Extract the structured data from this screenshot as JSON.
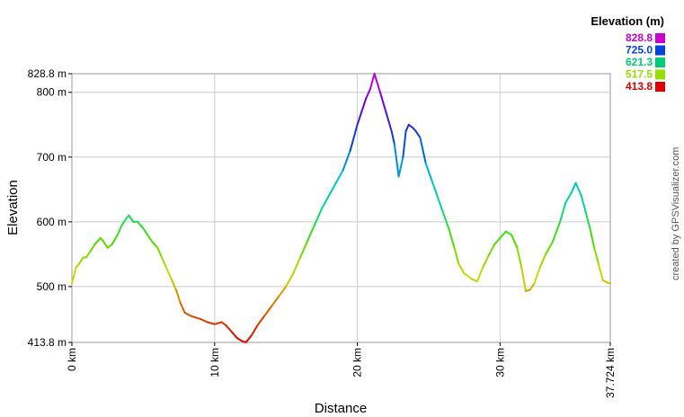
{
  "chart_data": {
    "type": "line",
    "title": "",
    "xlabel": "Distance",
    "ylabel": "Elevation",
    "xlim": [
      0,
      37.724
    ],
    "ylim": [
      413.8,
      828.8
    ],
    "grid": true,
    "x_ticks": [
      {
        "value": 0,
        "label": "0 km"
      },
      {
        "value": 10,
        "label": "10 km"
      },
      {
        "value": 20,
        "label": "20 km"
      },
      {
        "value": 30,
        "label": "30 km"
      },
      {
        "value": 37.724,
        "label": "37.724 km"
      }
    ],
    "y_ticks": [
      {
        "value": 413.8,
        "label": "413.8 m"
      },
      {
        "value": 500,
        "label": "500 m"
      },
      {
        "value": 600,
        "label": "600 m"
      },
      {
        "value": 700,
        "label": "700 m"
      },
      {
        "value": 800,
        "label": "800 m"
      },
      {
        "value": 828.8,
        "label": "828.8 m"
      }
    ],
    "series": [
      {
        "x": [
          0,
          0.3,
          0.5,
          0.8,
          1.0,
          1.3,
          1.6,
          2.0,
          2.2,
          2.5,
          2.8,
          3.2,
          3.5,
          3.8,
          4.0,
          4.3,
          4.6,
          5.0,
          5.3,
          5.6,
          6.0,
          6.3,
          6.6,
          7.0,
          7.3,
          7.6,
          7.9,
          8.3,
          8.7,
          9.0,
          9.5,
          10.0,
          10.5,
          10.8,
          11.2,
          11.6,
          12.0,
          12.2,
          12.6,
          13.0,
          13.5,
          14.0,
          14.5,
          15.0,
          15.5,
          16.0,
          16.5,
          17.0,
          17.5,
          18.0,
          18.5,
          19.0,
          19.5,
          20.0,
          20.3,
          20.6,
          20.9,
          21.2,
          21.6,
          22.0,
          22.4,
          22.6,
          22.9,
          23.2,
          23.4,
          23.6,
          23.9,
          24.1,
          24.4,
          24.8,
          25.2,
          25.6,
          26.0,
          26.4,
          26.8,
          27.1,
          27.5,
          28.0,
          28.4,
          28.8,
          29.2,
          29.6,
          30.0,
          30.4,
          30.8,
          31.2,
          31.5,
          31.8,
          32.1,
          32.4,
          32.8,
          33.2,
          33.7,
          34.2,
          34.6,
          35.0,
          35.3,
          35.7,
          36.0,
          36.3,
          36.6,
          36.9,
          37.2,
          37.5,
          37.724
        ],
        "y": [
          505,
          530,
          535,
          545,
          545,
          555,
          565,
          575,
          570,
          560,
          565,
          580,
          595,
          605,
          610,
          600,
          600,
          590,
          580,
          570,
          560,
          545,
          530,
          510,
          495,
          475,
          460,
          455,
          452,
          450,
          445,
          442,
          445,
          440,
          430,
          420,
          415,
          414,
          425,
          440,
          455,
          470,
          485,
          500,
          520,
          545,
          570,
          595,
          620,
          640,
          660,
          680,
          710,
          750,
          770,
          790,
          805,
          828.8,
          800,
          770,
          740,
          720,
          670,
          700,
          740,
          750,
          745,
          740,
          730,
          690,
          665,
          640,
          615,
          590,
          560,
          535,
          520,
          512,
          508,
          530,
          548,
          565,
          575,
          585,
          580,
          560,
          530,
          493,
          495,
          505,
          530,
          550,
          570,
          600,
          630,
          645,
          660,
          640,
          615,
          590,
          560,
          535,
          510,
          506,
          505
        ]
      }
    ],
    "legend": {
      "title": "Elevation (m)",
      "placement": "top-right",
      "entries": [
        {
          "label": "828.8",
          "color": "#cc00cc"
        },
        {
          "label": "725.0",
          "color": "#0044dd"
        },
        {
          "label": "621.3",
          "color": "#00cc77"
        },
        {
          "label": "517.5",
          "color": "#99dd00"
        },
        {
          "label": "413.8",
          "color": "#dd0000"
        }
      ]
    },
    "credit": "created by GPSVisualizer.com"
  }
}
